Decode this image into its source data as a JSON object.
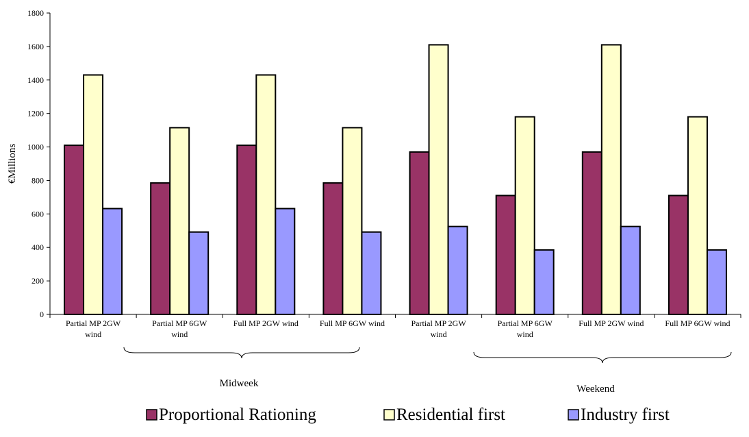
{
  "chart_data": {
    "type": "bar",
    "title": "",
    "xlabel": "",
    "ylabel": "€Millions",
    "ylim": [
      0,
      1800
    ],
    "yticks": [
      0,
      200,
      400,
      600,
      800,
      1000,
      1200,
      1400,
      1600,
      1800
    ],
    "grid": false,
    "legend_position": "bottom",
    "categories": [
      [
        "Partial MP 2GW",
        "wind"
      ],
      [
        "Partial MP 6GW",
        "wind"
      ],
      [
        "Full MP 2GW wind"
      ],
      [
        "Full MP 6GW wind"
      ],
      [
        "Partial MP 2GW",
        "wind"
      ],
      [
        "Partial MP 6GW",
        "wind"
      ],
      [
        "Full MP 2GW wind"
      ],
      [
        "Full MP 6GW wind"
      ]
    ],
    "groups": [
      {
        "label": "Midweek",
        "categories": [
          0,
          1,
          2,
          3
        ]
      },
      {
        "label": "Weekend",
        "categories": [
          4,
          5,
          6,
          7
        ]
      }
    ],
    "series": [
      {
        "name": "Proportional Rationing",
        "color": "#993366",
        "values": [
          1010,
          785,
          1010,
          785,
          970,
          710,
          970,
          710
        ]
      },
      {
        "name": "Residential first",
        "color": "#FFFFCC",
        "values": [
          1430,
          1115,
          1430,
          1115,
          1610,
          1180,
          1610,
          1180
        ]
      },
      {
        "name": "Industry first",
        "color": "#9999FF",
        "values": [
          632,
          492,
          632,
          492,
          525,
          385,
          525,
          385
        ]
      }
    ]
  }
}
